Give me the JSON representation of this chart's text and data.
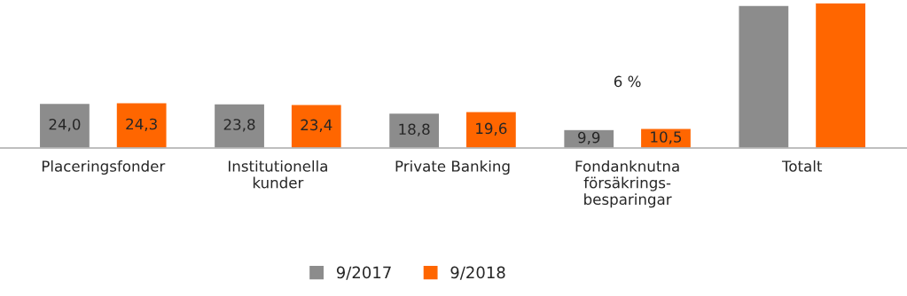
{
  "chart_data": {
    "type": "bar",
    "categories": [
      "Placeringsfonder",
      "Institutionella\nkunder",
      "Private Banking",
      "Fondanknutna\nförsäkrings-\nbesparingar",
      "Totalt"
    ],
    "series": [
      {
        "name": "9/2017",
        "color": "#8c8c8c",
        "values": [
          24.0,
          23.8,
          18.8,
          9.9,
          76.5
        ],
        "value_labels": [
          "24,0",
          "23,8",
          "18,8",
          "9,9",
          null
        ]
      },
      {
        "name": "9/2018",
        "color": "#ff6600",
        "values": [
          24.3,
          23.4,
          19.6,
          10.5,
          77.8
        ],
        "value_labels": [
          "24,3",
          "23,4",
          "19,6",
          "10,5",
          null
        ]
      }
    ],
    "tick_labels": "x",
    "annotations": [
      "6 %"
    ],
    "legend": "bottom",
    "grid": false
  }
}
